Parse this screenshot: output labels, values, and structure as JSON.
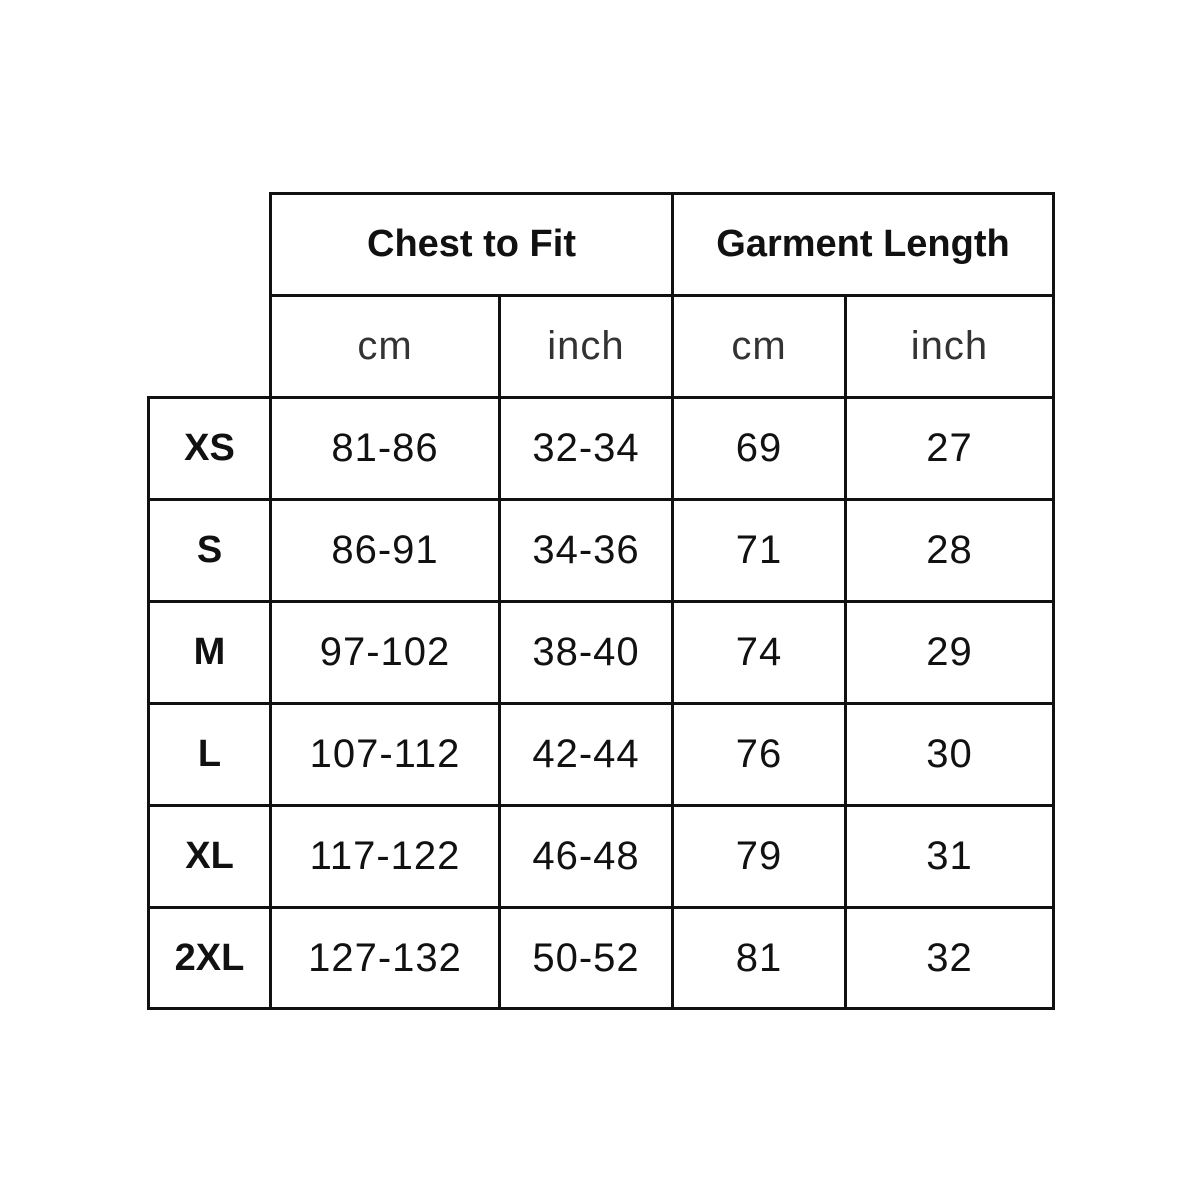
{
  "table": {
    "groups": [
      "Chest to Fit",
      "Garment Length"
    ],
    "units": [
      "cm",
      "inch",
      "cm",
      "inch"
    ],
    "rows": [
      {
        "size": "XS",
        "values": [
          "81-86",
          "32-34",
          "69",
          "27"
        ]
      },
      {
        "size": "S",
        "values": [
          "86-91",
          "34-36",
          "71",
          "28"
        ]
      },
      {
        "size": "M",
        "values": [
          "97-102",
          "38-40",
          "74",
          "29"
        ]
      },
      {
        "size": "L",
        "values": [
          "107-112",
          "42-44",
          "76",
          "30"
        ]
      },
      {
        "size": "XL",
        "values": [
          "117-122",
          "46-48",
          "79",
          "31"
        ]
      },
      {
        "size": "2XL",
        "values": [
          "127-132",
          "50-52",
          "81",
          "32"
        ]
      }
    ]
  }
}
